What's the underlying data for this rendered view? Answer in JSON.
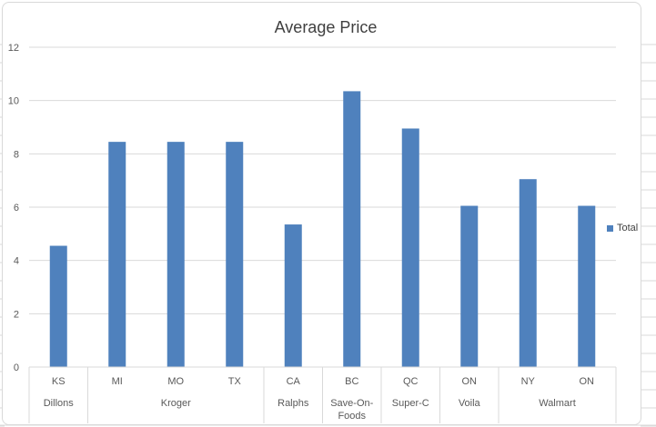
{
  "chart_data": {
    "type": "bar",
    "title": "Average Price",
    "xlabel": "",
    "ylabel": "",
    "ylim": [
      0,
      12
    ],
    "yticks": [
      0,
      2,
      4,
      6,
      8,
      10,
      12
    ],
    "grid": true,
    "legend_position": "right",
    "color": "#4f81bd",
    "categories": [
      {
        "group": "Dillons",
        "label": "KS"
      },
      {
        "group": "Kroger",
        "label": "MI"
      },
      {
        "group": "Kroger",
        "label": "MO"
      },
      {
        "group": "Kroger",
        "label": "TX"
      },
      {
        "group": "Ralphs",
        "label": "CA"
      },
      {
        "group": "Save-On-Foods",
        "label": "BC"
      },
      {
        "group": "Super-C",
        "label": "QC"
      },
      {
        "group": "Voila",
        "label": "ON"
      },
      {
        "group": "Walmart",
        "label": "NY"
      },
      {
        "group": "Walmart",
        "label": "ON"
      }
    ],
    "groups": [
      {
        "name": "Dillons",
        "lines": [
          "Dillons"
        ]
      },
      {
        "name": "Kroger",
        "lines": [
          "Kroger"
        ]
      },
      {
        "name": "Ralphs",
        "lines": [
          "Ralphs"
        ]
      },
      {
        "name": "Save-On-Foods",
        "lines": [
          "Save-On-",
          "Foods"
        ]
      },
      {
        "name": "Super-C",
        "lines": [
          "Super-C"
        ]
      },
      {
        "name": "Voila",
        "lines": [
          "Voila"
        ]
      },
      {
        "name": "Walmart",
        "lines": [
          "Walmart"
        ]
      }
    ],
    "series": [
      {
        "name": "Total",
        "values": [
          4.55,
          8.45,
          8.45,
          8.45,
          5.35,
          10.35,
          8.95,
          6.05,
          7.05,
          6.05
        ]
      }
    ]
  }
}
